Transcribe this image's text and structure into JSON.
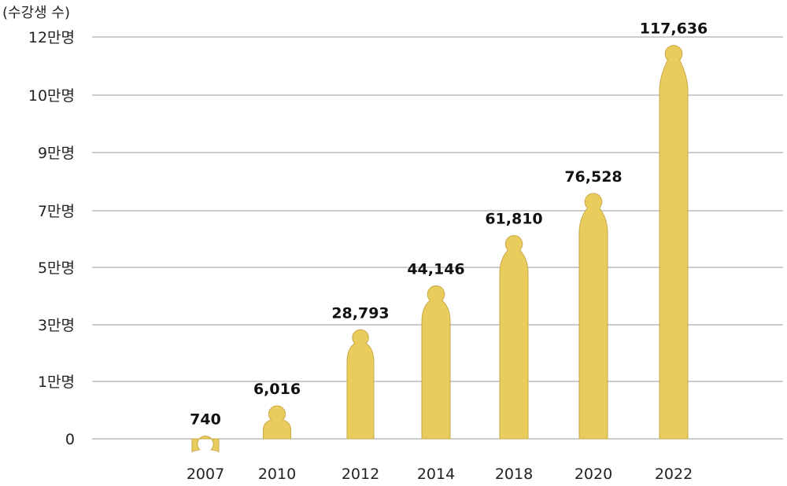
{
  "chart_data": {
    "type": "bar",
    "ylabel": "(수강생 수)",
    "categories": [
      "2007",
      "2010",
      "2012",
      "2014",
      "2018",
      "2020",
      "2022"
    ],
    "values": [
      740,
      6016,
      28793,
      44146,
      61810,
      76528,
      117636
    ],
    "value_labels": [
      "740",
      "6,016",
      "28,793",
      "44,146",
      "61,810",
      "76,528",
      "117,636"
    ],
    "yticks": [
      {
        "label": "0",
        "value": 0
      },
      {
        "label": "1만명",
        "value": 10000
      },
      {
        "label": "3만명",
        "value": 30000
      },
      {
        "label": "5만명",
        "value": 50000
      },
      {
        "label": "7만명",
        "value": 70000
      },
      {
        "label": "9만명",
        "value": 90000
      },
      {
        "label": "10만명",
        "value": 100000
      },
      {
        "label": "12만명",
        "value": 120000
      }
    ],
    "grid": true,
    "colors": {
      "bar": "#E8CD5C",
      "bar_stroke": "#C9A84A",
      "grid": "#9a9a9a"
    }
  }
}
